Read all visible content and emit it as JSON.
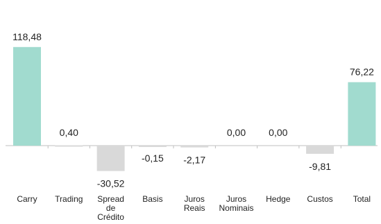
{
  "chart_data": {
    "type": "bar",
    "subtype": "waterfall",
    "categories": [
      [
        "Carry"
      ],
      [
        "Trading"
      ],
      [
        "Spread",
        "de",
        "Crédito"
      ],
      [
        "Basis"
      ],
      [
        "Juros",
        "Reais"
      ],
      [
        "Juros",
        "Nominais"
      ],
      [
        "Hedge"
      ],
      [
        "Custos"
      ],
      [
        "Total"
      ]
    ],
    "values": [
      118.48,
      0.4,
      -30.52,
      -0.15,
      -2.17,
      0.0,
      0.0,
      -9.81,
      76.22
    ],
    "value_labels": [
      "118,48",
      "0,40",
      "-30,52",
      "-0,15",
      "-2,17",
      "0,00",
      "0,00",
      "-9,81",
      "76,22"
    ],
    "bar_kind": [
      "total",
      "delta",
      "delta",
      "delta",
      "delta",
      "delta",
      "delta",
      "delta",
      "total"
    ],
    "ylim": [
      -30.52,
      118.48
    ],
    "grid": false,
    "legend": "none",
    "title": "",
    "xlabel": "",
    "ylabel": "",
    "colors": {
      "total": "#a1dbcf",
      "delta": "#d9d9d9",
      "axis": "#bfbfbf",
      "text": "#222222"
    }
  }
}
